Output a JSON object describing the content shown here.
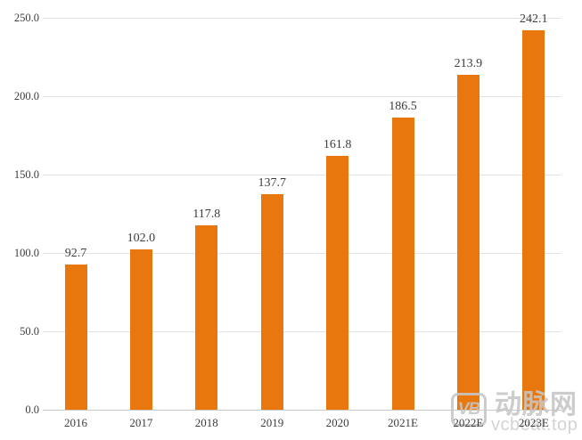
{
  "chart_data": {
    "type": "bar",
    "categories": [
      "2016",
      "2017",
      "2018",
      "2019",
      "2020",
      "2021E",
      "2022E",
      "2023E"
    ],
    "values": [
      92.7,
      102.0,
      117.8,
      137.7,
      161.8,
      186.5,
      213.9,
      242.1
    ],
    "data_labels": [
      "92.7",
      "102.0",
      "117.8",
      "137.7",
      "161.8",
      "186.5",
      "213.9",
      "242.1"
    ],
    "y_tick_labels": [
      "0.0",
      "50.0",
      "100.0",
      "150.0",
      "200.0",
      "250.0"
    ],
    "ylim": [
      0,
      250
    ],
    "grid": true,
    "legend_position": "none",
    "title": "",
    "xlabel": "",
    "ylabel": ""
  },
  "colors": {
    "bar": "#E8770E",
    "gridline": "#E3E3E3",
    "axis_line": "#C9C9C9",
    "text": "#3D3D3D",
    "watermark": "#C6C6C6",
    "background": "#FFFFFF"
  },
  "watermark": {
    "logo_monogram": "VB",
    "site_name_cn": "动脉网",
    "site_url": "vcbeat.top"
  }
}
